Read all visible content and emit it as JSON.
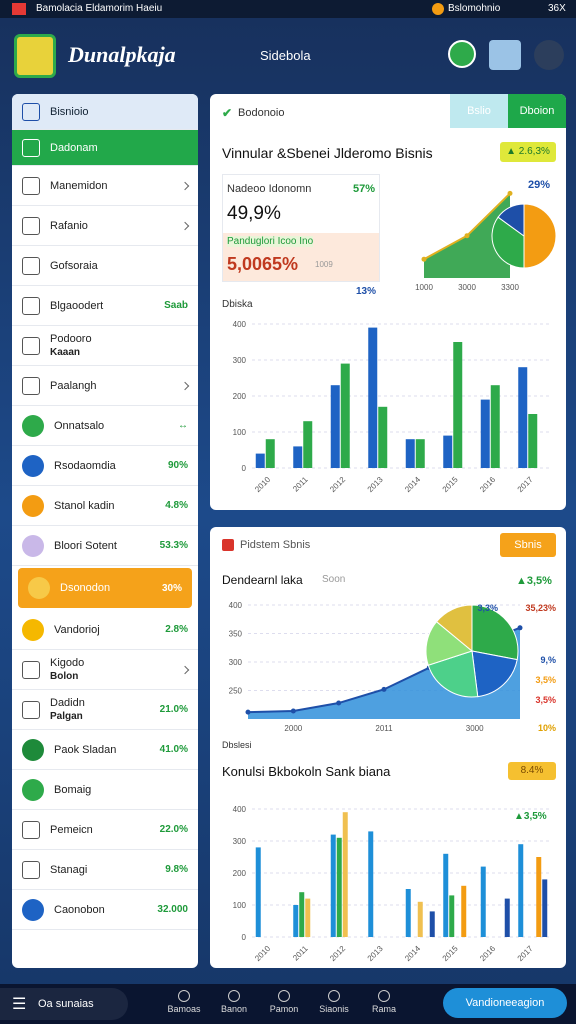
{
  "status_bar": {
    "left": "Bamolacia Eldamorim Haeiu",
    "right": "Bslomohnio",
    "battery": "36X"
  },
  "header": {
    "app_name": "Dunalpkaja",
    "center": "Sidebola"
  },
  "sidebar": {
    "items": [
      {
        "label": "Bisnioio",
        "style": "header"
      },
      {
        "label": "Dadonam",
        "style": "green"
      },
      {
        "label": "Manemidon",
        "chevron": true
      },
      {
        "label": "Rafanio",
        "chevron": true
      },
      {
        "label": "Gofsoraia"
      },
      {
        "label": "Blgaoodert",
        "value": "Saab"
      },
      {
        "label": "Podooro",
        "sublabel": "Kaaan"
      },
      {
        "label": "Paalangh",
        "chevron": true
      },
      {
        "label": "Onnatsalo",
        "value": "↔",
        "icon_color": "#2eaa4a"
      },
      {
        "label": "Rsodaomdia",
        "value": "90%",
        "icon_color": "#1e63c4"
      },
      {
        "label": "Stanol kadin",
        "value": "4.8%",
        "icon_color": "#f39c12"
      },
      {
        "label": "Bloori Sotent",
        "value": "53.3%",
        "icon_color": "#c9b8e8"
      },
      {
        "label": "Dsonodon",
        "value": "30%",
        "style": "orange",
        "icon_color": "#f7c948"
      },
      {
        "label": "Vandorioj",
        "value": "2.8%",
        "icon_color": "#f5b800"
      },
      {
        "label": "Kigodo",
        "sublabel": "Bolon",
        "chevron": true
      },
      {
        "label": "Dadidn",
        "sublabel": "Palgan",
        "value": "21.0%"
      },
      {
        "label": "Paok Sladan",
        "value": "41.0%",
        "icon_color": "#1e8a3a"
      },
      {
        "label": "Bomaig",
        "icon_color": "#2eaa4a"
      },
      {
        "label": "Pemeicn",
        "value": "22.0%"
      },
      {
        "label": "Stanagi",
        "value": "9.8%"
      },
      {
        "label": "Caonobon",
        "value": "32.000",
        "icon_color": "#1e63c4"
      }
    ]
  },
  "panel1": {
    "title": "Bodonoio",
    "tabs": [
      "Bslio",
      "Dboion"
    ],
    "heading": "Vinnular &Sbenei Jlderomo Bisnis",
    "badge": "▲ 2.6,3%",
    "kpis": [
      {
        "label": "Nadeoo Idonomn",
        "change": "57%",
        "value": "49,9%"
      },
      {
        "label": "Panduglori Icoo Ino",
        "change": "1009",
        "value": "5,0065%"
      }
    ],
    "kpi_note": "13%",
    "mini_area": {
      "type": "area",
      "categories": [
        "1000",
        "3000",
        "3300"
      ],
      "values": [
        20,
        45,
        90
      ],
      "ylim": [
        0,
        100
      ],
      "color": "#1e9a3a",
      "line_color": "#e0b020"
    },
    "mini_pie": {
      "type": "pie",
      "label": "29%",
      "values": [
        50,
        35,
        15
      ],
      "colors": [
        "#f39c12",
        "#2eaa4a",
        "#1e4fa8"
      ]
    },
    "bar_chart": {
      "type": "bar",
      "label": "Dbiska",
      "categories": [
        "2010",
        "2011",
        "2012",
        "2013",
        "2014",
        "2015",
        "2016",
        "2017"
      ],
      "ylim": [
        0,
        400
      ],
      "yticks": [
        0,
        100,
        200,
        300,
        400
      ],
      "grid": true,
      "series": [
        {
          "color": "#1e63c4",
          "values": [
            40,
            60,
            230,
            390,
            80,
            90,
            190,
            280
          ]
        },
        {
          "color": "#2eaa4a",
          "values": [
            80,
            130,
            290,
            170,
            80,
            350,
            230,
            150
          ]
        },
        {
          "color": "#29a8e0",
          "values": [
            0,
            0,
            0,
            0,
            0,
            0,
            0,
            0
          ]
        }
      ]
    }
  },
  "panel2": {
    "title": "Pidstem Sbnis",
    "button": "Sbnis",
    "area_title": "Dendearnl laka",
    "area_subtitle": "Soon",
    "area_badge": "▲3,5%",
    "area_chart": {
      "type": "area",
      "categories": [
        null,
        "2000",
        null,
        "2011",
        null,
        "3000",
        null
      ],
      "values": [
        212,
        214,
        228,
        252,
        290,
        330,
        360
      ],
      "ylim": [
        200,
        400
      ],
      "yticks": [
        250,
        300,
        350,
        400
      ],
      "grid": true,
      "color": "#2f8fdb",
      "line_color": "#1e4fa8"
    },
    "pie": {
      "type": "pie",
      "values": [
        28,
        20,
        22,
        16,
        14
      ],
      "colors": [
        "#2eaa4a",
        "#1e63c4",
        "#4dd08a",
        "#8fe07a",
        "#e0c040"
      ]
    },
    "annotations": [
      "3,3%",
      "35,23%",
      "9,%",
      "3,5%",
      "3,5%",
      "10%"
    ],
    "footer_label": "Dbslesi",
    "bar_title": "Konulsi Bkbokoln Sank biana",
    "bar_badge": "8.4%",
    "bar_note": "▲3,5%",
    "bar_chart": {
      "type": "bar",
      "categories": [
        "2010",
        "2011",
        "2012",
        "2013",
        "2014",
        "2015",
        "2016",
        "2017"
      ],
      "ylim": [
        0,
        400
      ],
      "yticks": [
        0,
        100,
        200,
        300,
        400
      ],
      "grid": true,
      "series": [
        {
          "color": "#1e8fd8",
          "values": [
            280,
            100,
            320,
            330,
            150,
            260,
            220,
            290
          ]
        },
        {
          "color": "#2eaa4a",
          "values": [
            0,
            140,
            310,
            0,
            0,
            130,
            0,
            0
          ]
        },
        {
          "color": "#f0c050",
          "values": [
            0,
            120,
            390,
            0,
            110,
            0,
            0,
            0
          ]
        },
        {
          "color": "#f39c12",
          "values": [
            0,
            0,
            0,
            0,
            0,
            160,
            0,
            250
          ]
        },
        {
          "color": "#1e4fa8",
          "values": [
            0,
            0,
            0,
            0,
            80,
            0,
            120,
            180
          ]
        }
      ]
    }
  },
  "bottom_bar": {
    "menu": "Oa sunaias",
    "nav": [
      "Bamoas",
      "Banon",
      "Pamon",
      "Siaonis",
      "Rama"
    ],
    "button": "Vandioneeagion"
  }
}
